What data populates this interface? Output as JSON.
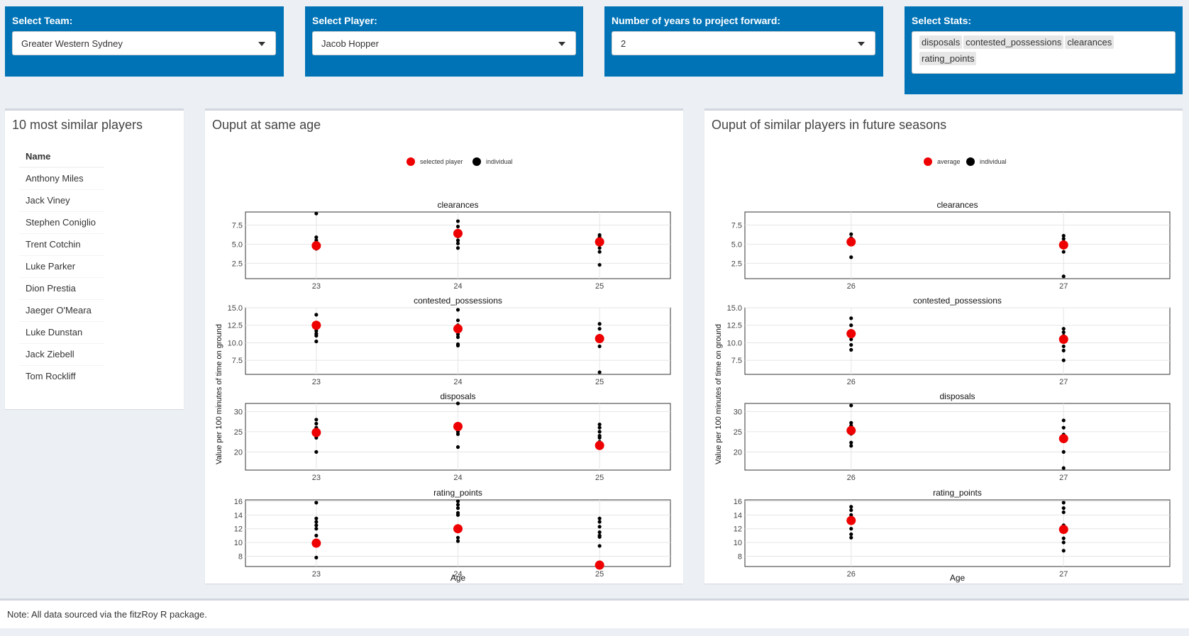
{
  "controls": {
    "team": {
      "label": "Select Team:",
      "value": "Greater Western Sydney"
    },
    "player": {
      "label": "Select Player:",
      "value": "Jacob Hopper"
    },
    "years": {
      "label": "Number of years to project forward:",
      "value": "2"
    },
    "stats": {
      "label": "Select Stats:",
      "chips": [
        "disposals",
        "contested_possessions",
        "clearances",
        "rating_points"
      ]
    }
  },
  "similar": {
    "title": "10 most similar players",
    "header": "Name",
    "players": [
      "Anthony Miles",
      "Jack Viney",
      "Stephen Coniglio",
      "Trent Cotchin",
      "Luke Parker",
      "Dion Prestia",
      "Jaeger O'Meara",
      "Luke Dunstan",
      "Jack Ziebell",
      "Tom Rockliff"
    ]
  },
  "left_box": {
    "title": "Ouput at same age"
  },
  "right_box": {
    "title": "Ouput of similar players in future seasons"
  },
  "note": "Note: All data sourced via the fitzRoy R package.",
  "colors": {
    "accent": "#0073b7",
    "highlight": "#ee0000",
    "point": "#000000"
  },
  "chart_data": [
    {
      "type": "scatter",
      "title": "",
      "legend": [
        "selected player",
        "individual"
      ],
      "legend_position": "top",
      "xlabel": "Age",
      "ylabel": "Value per 100 minutes of time on ground",
      "x": [
        23,
        24,
        25
      ],
      "panels": [
        {
          "name": "clearances",
          "ylim": [
            0.5,
            9.2
          ],
          "yticks": [
            2.5,
            5.0,
            7.5
          ],
          "individual": [
            [
              23,
              9.0
            ],
            [
              23,
              5.9
            ],
            [
              23,
              5.5
            ],
            [
              23,
              5.2
            ],
            [
              23,
              4.9
            ],
            [
              23,
              4.6
            ],
            [
              23,
              4.4
            ],
            [
              24,
              8.0
            ],
            [
              24,
              7.3
            ],
            [
              24,
              6.0
            ],
            [
              24,
              5.5
            ],
            [
              24,
              5.1
            ],
            [
              24,
              4.5
            ],
            [
              25,
              6.2
            ],
            [
              25,
              5.9
            ],
            [
              25,
              5.6
            ],
            [
              25,
              5.0
            ],
            [
              25,
              4.5
            ],
            [
              25,
              4.0
            ],
            [
              25,
              2.3
            ]
          ],
          "highlight": [
            [
              23,
              4.8
            ],
            [
              24,
              6.4
            ],
            [
              25,
              5.3
            ]
          ]
        },
        {
          "name": "contested_possessions",
          "ylim": [
            5.5,
            15.0
          ],
          "yticks": [
            7.5,
            10.0,
            12.5,
            15.0
          ],
          "individual": [
            [
              23,
              14.0
            ],
            [
              23,
              12.6
            ],
            [
              23,
              12.0
            ],
            [
              23,
              11.7
            ],
            [
              23,
              11.3
            ],
            [
              23,
              11.0
            ],
            [
              23,
              10.2
            ],
            [
              24,
              14.7
            ],
            [
              24,
              13.2
            ],
            [
              24,
              12.5
            ],
            [
              24,
              11.8
            ],
            [
              24,
              11.2
            ],
            [
              24,
              10.8
            ],
            [
              24,
              9.8
            ],
            [
              24,
              9.6
            ],
            [
              25,
              12.7
            ],
            [
              25,
              12.0
            ],
            [
              25,
              11.0
            ],
            [
              25,
              9.5
            ],
            [
              25,
              5.8
            ]
          ],
          "highlight": [
            [
              23,
              12.5
            ],
            [
              24,
              12.0
            ],
            [
              25,
              10.6
            ]
          ]
        },
        {
          "name": "disposals",
          "ylim": [
            15.5,
            32.0
          ],
          "yticks": [
            20,
            25,
            30
          ],
          "individual": [
            [
              23,
              28.0
            ],
            [
              23,
              27.0
            ],
            [
              23,
              26.0
            ],
            [
              23,
              24.8
            ],
            [
              23,
              24.0
            ],
            [
              23,
              23.5
            ],
            [
              23,
              20.0
            ],
            [
              24,
              32.0
            ],
            [
              24,
              26.5
            ],
            [
              24,
              25.0
            ],
            [
              24,
              24.4
            ],
            [
              24,
              21.2
            ],
            [
              25,
              26.8
            ],
            [
              25,
              26.0
            ],
            [
              25,
              25.0
            ],
            [
              25,
              24.0
            ],
            [
              25,
              23.5
            ],
            [
              25,
              22.5
            ],
            [
              25,
              21.5
            ]
          ],
          "highlight": [
            [
              23,
              24.8
            ],
            [
              24,
              26.3
            ],
            [
              25,
              21.6
            ]
          ]
        },
        {
          "name": "rating_points",
          "ylim": [
            6.5,
            16.2
          ],
          "yticks": [
            8,
            10,
            12,
            14,
            16
          ],
          "individual": [
            [
              23,
              15.8
            ],
            [
              23,
              13.5
            ],
            [
              23,
              13.0
            ],
            [
              23,
              12.5
            ],
            [
              23,
              12.0
            ],
            [
              23,
              11.0
            ],
            [
              23,
              7.8
            ],
            [
              24,
              16.0
            ],
            [
              24,
              15.5
            ],
            [
              24,
              15.0
            ],
            [
              24,
              14.3
            ],
            [
              24,
              14.0
            ],
            [
              24,
              10.7
            ],
            [
              24,
              10.2
            ],
            [
              25,
              13.5
            ],
            [
              25,
              13.0
            ],
            [
              25,
              12.3
            ],
            [
              25,
              11.5
            ],
            [
              25,
              11.0
            ],
            [
              25,
              10.8
            ],
            [
              25,
              9.5
            ]
          ],
          "highlight": [
            [
              23,
              9.9
            ],
            [
              24,
              12.0
            ],
            [
              25,
              6.7
            ]
          ]
        }
      ]
    },
    {
      "type": "scatter",
      "title": "",
      "legend": [
        "average",
        "individual"
      ],
      "legend_position": "top",
      "xlabel": "Age",
      "ylabel": "Value per 100 minutes of time on ground",
      "x": [
        26,
        27
      ],
      "panels": [
        {
          "name": "clearances",
          "ylim": [
            0.5,
            9.2
          ],
          "yticks": [
            2.5,
            5.0,
            7.5
          ],
          "individual": [
            [
              26,
              6.3
            ],
            [
              26,
              5.8
            ],
            [
              26,
              5.5
            ],
            [
              26,
              5.0
            ],
            [
              26,
              3.3
            ],
            [
              27,
              6.1
            ],
            [
              27,
              5.7
            ],
            [
              27,
              5.3
            ],
            [
              27,
              4.8
            ],
            [
              27,
              4.0
            ],
            [
              27,
              0.8
            ]
          ],
          "highlight": [
            [
              26,
              5.3
            ],
            [
              27,
              4.9
            ]
          ]
        },
        {
          "name": "contested_possessions",
          "ylim": [
            5.5,
            15.0
          ],
          "yticks": [
            7.5,
            10.0,
            12.5,
            15.0
          ],
          "individual": [
            [
              26,
              13.5
            ],
            [
              26,
              12.5
            ],
            [
              26,
              11.7
            ],
            [
              26,
              11.0
            ],
            [
              26,
              10.5
            ],
            [
              26,
              9.7
            ],
            [
              26,
              9.0
            ],
            [
              27,
              12.0
            ],
            [
              27,
              11.5
            ],
            [
              27,
              11.0
            ],
            [
              27,
              10.2
            ],
            [
              27,
              9.5
            ],
            [
              27,
              8.9
            ],
            [
              27,
              7.5
            ]
          ],
          "highlight": [
            [
              26,
              11.3
            ],
            [
              27,
              10.5
            ]
          ]
        },
        {
          "name": "disposals",
          "ylim": [
            15.5,
            32.0
          ],
          "yticks": [
            20,
            25,
            30
          ],
          "individual": [
            [
              26,
              31.5
            ],
            [
              26,
              27.2
            ],
            [
              26,
              26.5
            ],
            [
              26,
              25.5
            ],
            [
              26,
              24.5
            ],
            [
              26,
              22.3
            ],
            [
              26,
              21.5
            ],
            [
              27,
              27.8
            ],
            [
              27,
              26.0
            ],
            [
              27,
              24.3
            ],
            [
              27,
              23.5
            ],
            [
              27,
              20.0
            ],
            [
              27,
              16.0
            ]
          ],
          "highlight": [
            [
              26,
              25.3
            ],
            [
              27,
              23.3
            ]
          ]
        },
        {
          "name": "rating_points",
          "ylim": [
            6.5,
            16.2
          ],
          "yticks": [
            8,
            10,
            12,
            14,
            16
          ],
          "individual": [
            [
              26,
              15.2
            ],
            [
              26,
              14.7
            ],
            [
              26,
              14.0
            ],
            [
              26,
              13.3
            ],
            [
              26,
              12.0
            ],
            [
              26,
              11.2
            ],
            [
              26,
              10.7
            ],
            [
              27,
              15.8
            ],
            [
              27,
              15.0
            ],
            [
              27,
              14.4
            ],
            [
              27,
              12.5
            ],
            [
              27,
              10.6
            ],
            [
              27,
              10.0
            ],
            [
              27,
              8.8
            ]
          ],
          "highlight": [
            [
              26,
              13.2
            ],
            [
              27,
              11.9
            ]
          ]
        }
      ]
    }
  ]
}
